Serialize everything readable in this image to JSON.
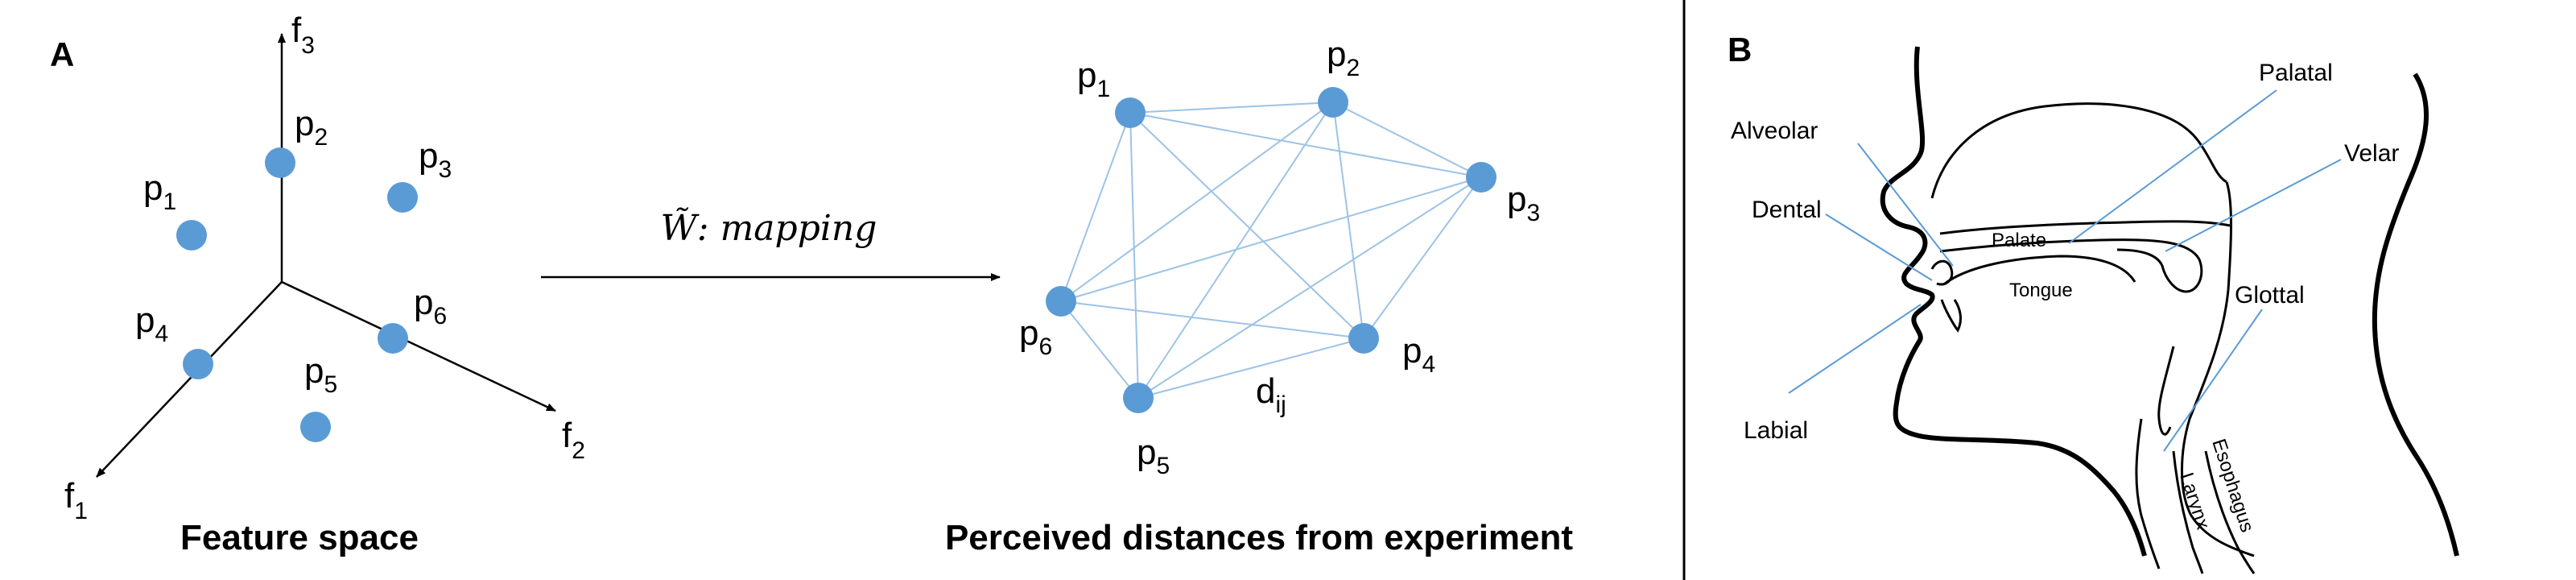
{
  "panel_a": {
    "letter": "A",
    "feature_space": {
      "caption": "Feature space",
      "axes": [
        {
          "base": "f",
          "sub": "3"
        },
        {
          "base": "f",
          "sub": "2"
        },
        {
          "base": "f",
          "sub": "1"
        }
      ],
      "points": [
        {
          "base": "p",
          "sub": "1"
        },
        {
          "base": "p",
          "sub": "2"
        },
        {
          "base": "p",
          "sub": "3"
        },
        {
          "base": "p",
          "sub": "4"
        },
        {
          "base": "p",
          "sub": "5"
        },
        {
          "base": "p",
          "sub": "6"
        }
      ]
    },
    "mapping": {
      "symbol": "W̃",
      "text": ": mapping"
    },
    "perceived": {
      "caption": "Perceived distances from experiment",
      "points": [
        {
          "base": "p",
          "sub": "1"
        },
        {
          "base": "p",
          "sub": "2"
        },
        {
          "base": "p",
          "sub": "3"
        },
        {
          "base": "p",
          "sub": "4"
        },
        {
          "base": "p",
          "sub": "5"
        },
        {
          "base": "p",
          "sub": "6"
        }
      ],
      "distance_label": {
        "base": "d",
        "sub": "ij"
      }
    }
  },
  "panel_b": {
    "letter": "B",
    "labels": {
      "palatal": "Palatal",
      "alveolar": "Alveolar",
      "velar": "Velar",
      "dental": "Dental",
      "palate": "Palate",
      "tongue": "Tongue",
      "glottal": "Glottal",
      "labial": "Labial",
      "esophagus": "Esophagus",
      "larynx": "Larynx"
    }
  },
  "colors": {
    "point_fill": "#5b9bd5",
    "edge_stroke": "#9dc3e6",
    "pointer_stroke": "#5b9bd5",
    "line": "#000000"
  }
}
